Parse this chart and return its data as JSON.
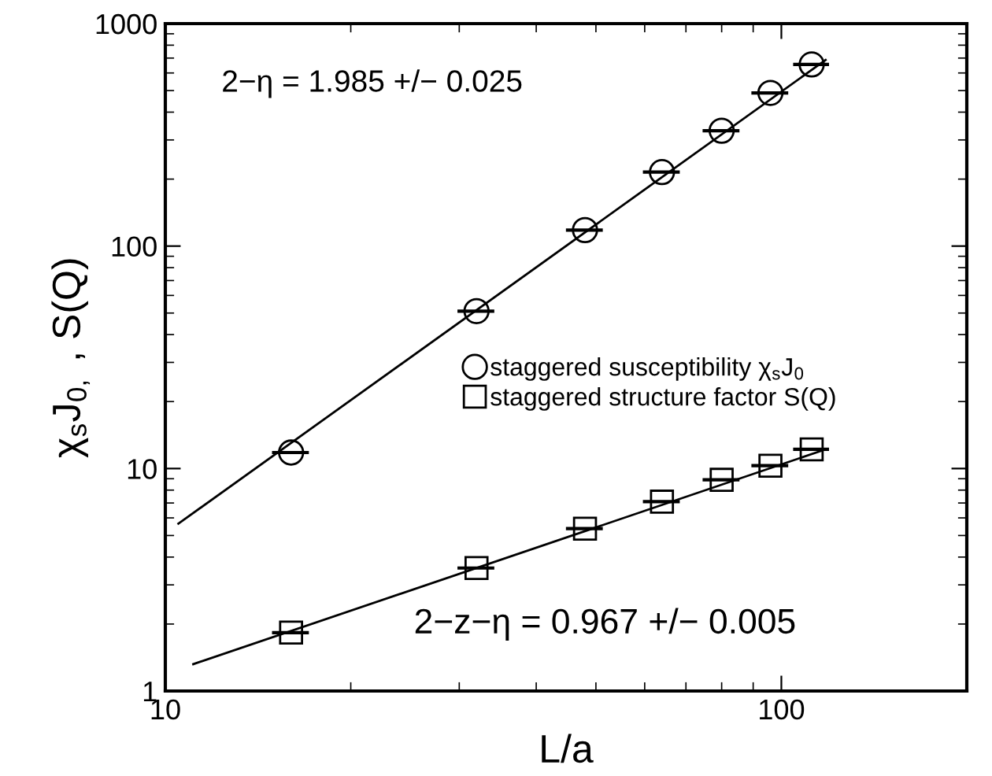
{
  "chart_data": {
    "type": "scatter",
    "xlabel": "L/a",
    "ylabel": "χ$_{s}$J$_{0,}$ , S(Q)",
    "log": "xy",
    "xlim": [
      10,
      200
    ],
    "xticks": [
      10,
      100
    ],
    "ylim": [
      1,
      1000
    ],
    "yticks": [
      1,
      10,
      100,
      1000
    ],
    "grid": false,
    "legend": "center right",
    "annotations": [
      "2−η = 1.985 +/− 0.025",
      "2−z−η = 0.967 +/− 0.005"
    ],
    "series": [
      {
        "name": "staggered susceptibility χ$_{s}$J$_{0}$",
        "marker": "circle",
        "color": "#000000",
        "x": [
          16,
          32,
          48,
          64,
          80,
          96,
          112
        ],
        "values": [
          11.8,
          51,
          118,
          215,
          330,
          488,
          655
        ],
        "xerrors": [
          1.1,
          2.2,
          3.3,
          4.4,
          5.5,
          6.6,
          7.5
        ]
      },
      {
        "name": "staggered structure factor S(Q)",
        "marker": "square",
        "color": "#000000",
        "x": [
          16,
          32,
          48,
          64,
          80,
          96,
          112
        ],
        "values": [
          1.83,
          3.57,
          5.37,
          7.1,
          8.9,
          10.3,
          12.2
        ],
        "xerrors": [
          1.1,
          2.2,
          3.3,
          4.4,
          5.5,
          6.6,
          7.5
        ]
      },
      {
        "type": "line",
        "color": "#000000",
        "line_style": "solid",
        "marker": "none",
        "x": [
          10.5,
          118
        ],
        "values": [
          5.65,
          687
        ]
      },
      {
        "type": "line",
        "color": "#000000",
        "line_style": "solid",
        "marker": "none",
        "x": [
          11.1,
          118
        ],
        "values": [
          1.32,
          12.2
        ]
      }
    ]
  }
}
